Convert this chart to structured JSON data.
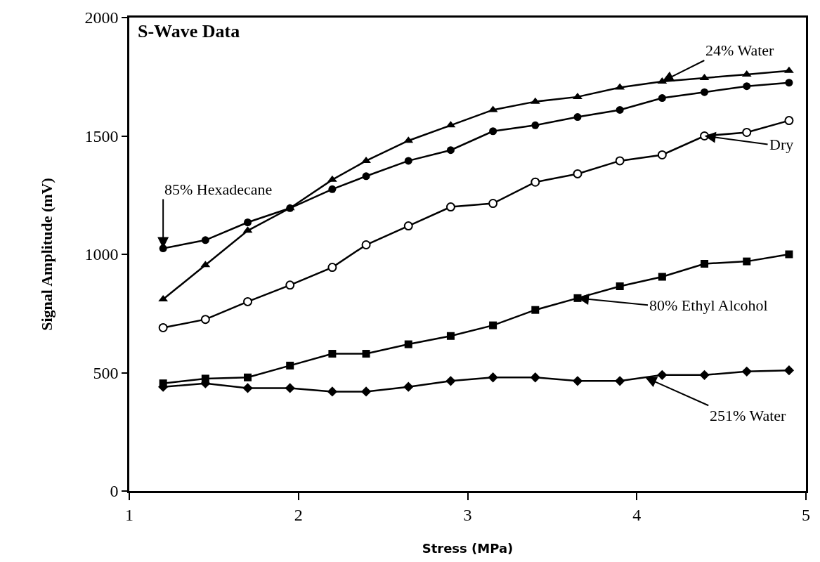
{
  "chart_data": {
    "type": "line",
    "title": "S-Wave Data",
    "xlabel": "Stress (MPa)",
    "ylabel": "Signal Amplitude (mV)",
    "x": [
      1.2,
      1.45,
      1.7,
      1.95,
      2.2,
      2.4,
      2.65,
      2.9,
      3.15,
      3.4,
      3.65,
      3.9,
      4.15,
      4.4,
      4.65,
      4.9
    ],
    "series": [
      {
        "color": "#000000",
        "marker": "triangle",
        "values": [
          810,
          955,
          1100,
          1195,
          1315,
          1395,
          1480,
          1545,
          1610,
          1645,
          1665,
          1705,
          1730,
          1745,
          1760,
          1775
        ]
      },
      {
        "color": "#000000",
        "marker": "circle",
        "values": [
          1025,
          1060,
          1135,
          1195,
          1275,
          1330,
          1395,
          1440,
          1520,
          1545,
          1580,
          1610,
          1660,
          1685,
          1710,
          1725
        ]
      },
      {
        "color": "#000000",
        "marker": "circle-open",
        "values": [
          690,
          725,
          800,
          870,
          945,
          1040,
          1120,
          1200,
          1215,
          1305,
          1340,
          1395,
          1420,
          1500,
          1515,
          1565
        ]
      },
      {
        "color": "#000000",
        "marker": "square",
        "values": [
          455,
          475,
          480,
          530,
          580,
          580,
          620,
          655,
          700,
          765,
          815,
          865,
          905,
          960,
          970,
          1000
        ]
      },
      {
        "color": "#000000",
        "marker": "diamond",
        "values": [
          440,
          455,
          435,
          435,
          420,
          420,
          440,
          465,
          480,
          480,
          465,
          465,
          490,
          490,
          505,
          510
        ]
      }
    ],
    "xlim": [
      1,
      5
    ],
    "xticks": [
      1,
      2,
      3,
      4,
      5
    ],
    "ylim": [
      0,
      2000
    ],
    "yticks": [
      0,
      500,
      1000,
      1500,
      2000
    ],
    "line_style": "solid",
    "annotations": [
      {
        "text": "24% Water",
        "x": 4.15,
        "y": 1730
      },
      {
        "text": "85% Hexadecane",
        "x": 1.2,
        "y": 1025
      },
      {
        "text": "Dry",
        "x": 4.4,
        "y": 1500
      },
      {
        "text": "80% Ethyl Alcohol",
        "x": 3.65,
        "y": 815
      },
      {
        "text": "251% Water",
        "x": 4.05,
        "y": 480
      }
    ]
  }
}
